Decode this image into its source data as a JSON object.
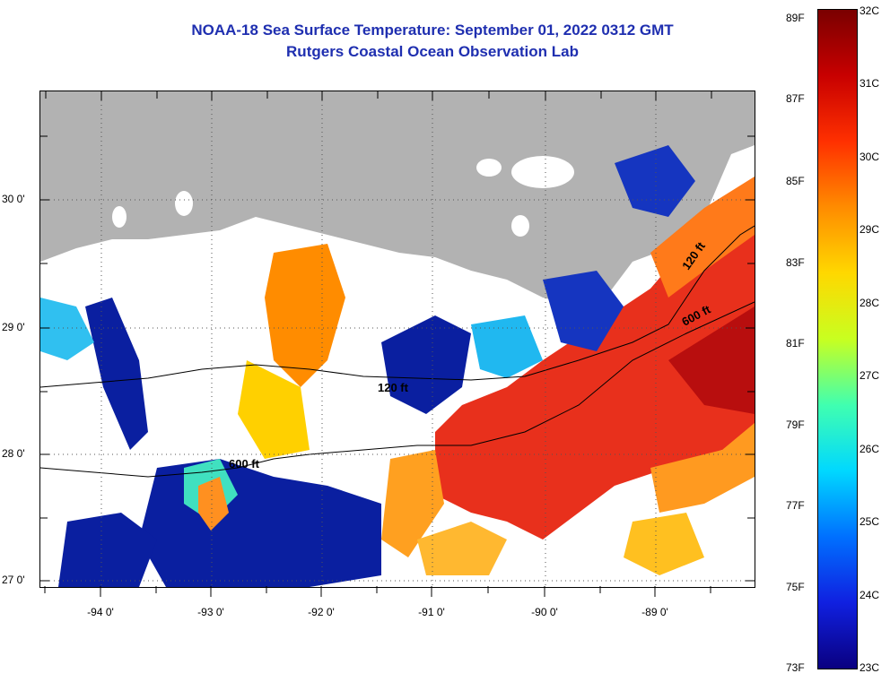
{
  "title": {
    "line1": "NOAA-18 Sea Surface Temperature:  September 01, 2022 0312 GMT",
    "line2": "Rutgers Coastal Ocean Observation Lab"
  },
  "map": {
    "lat_labels": [
      "30 0'",
      "29 0'",
      "28 0'",
      "27 0'"
    ],
    "lon_labels": [
      "-94 0'",
      "-93 0'",
      "-92 0'",
      "-91 0'",
      "-90 0'",
      "-89 0'"
    ],
    "isobath_labels": [
      "120 ft",
      "600 ft",
      "120 ft",
      "600 ft"
    ],
    "colors": {
      "land": "#b2b2b2",
      "cloud": "#ffffff",
      "ocean_deep_blue": "#0a1fa0",
      "warm_red": "#e8301c",
      "frame": "#000000"
    }
  },
  "colorbar": {
    "fahrenheit_labels": [
      "89F",
      "87F",
      "85F",
      "83F",
      "81F",
      "79F",
      "77F",
      "75F",
      "73F"
    ],
    "celsius_labels": [
      "32C",
      "31C",
      "30C",
      "29C",
      "28C",
      "27C",
      "26C",
      "25C",
      "24C",
      "23C"
    ],
    "gradient": [
      "#7a0000",
      "#c80000",
      "#ff3000",
      "#ff8c00",
      "#ffd800",
      "#c8ff20",
      "#40ffb0",
      "#00d8ff",
      "#0070ff",
      "#1020e0",
      "#0a0080"
    ]
  }
}
